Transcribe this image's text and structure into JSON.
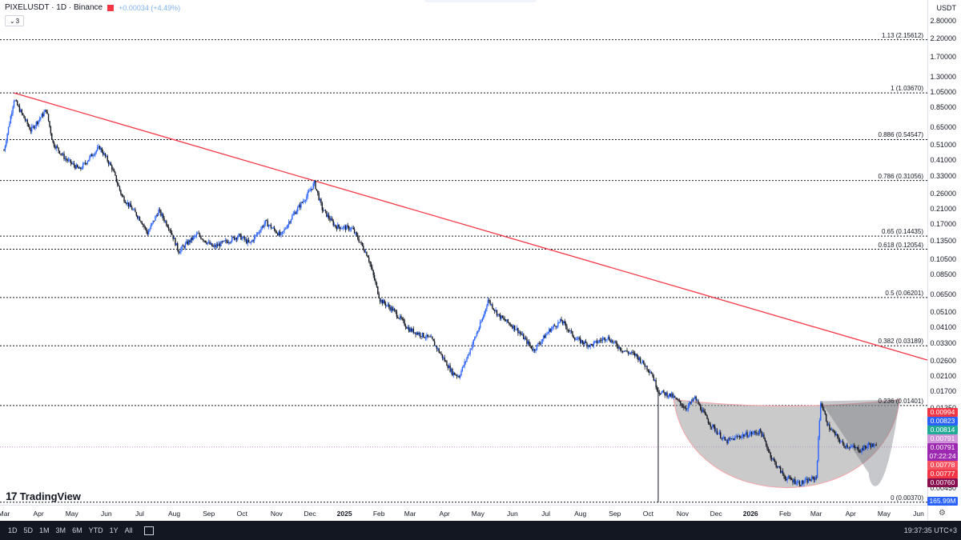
{
  "header": {
    "symbol": "PIXELUSDT · 1D · Binance",
    "change": "+0.00034 (+4.49%)",
    "indicator_count": "3"
  },
  "price_axis": {
    "currency": "USDT",
    "labels": [
      "2.80000",
      "2.20000",
      "1.70000",
      "1.30000",
      "1.05000",
      "0.85000",
      "0.65000",
      "0.51000",
      "0.41000",
      "0.33000",
      "0.26000",
      "0.21000",
      "0.17000",
      "0.13500",
      "0.10500",
      "0.08500",
      "0.06500",
      "0.05100",
      "0.04100",
      "0.03300",
      "0.02600",
      "0.02100",
      "0.01700",
      "0.01350",
      "0.00450"
    ],
    "badges": [
      {
        "text": "0.00994",
        "color": "#f23645"
      },
      {
        "text": "0.00823",
        "color": "#2962ff"
      },
      {
        "text": "0.00814",
        "color": "#22ab94"
      },
      {
        "text": "0.00791",
        "color": "#ce93d8"
      },
      {
        "text": "0.00791",
        "color": "#9c27b0"
      },
      {
        "text": "0.00778",
        "color": "#f7525f"
      },
      {
        "text": "0.00777",
        "color": "#f23645"
      },
      {
        "text": "0.00760",
        "color": "#880e4f"
      }
    ],
    "countdown": "07:22:24",
    "volume_badge": "165.99M"
  },
  "time_axis": {
    "labels": [
      "Mar",
      "Apr",
      "May",
      "Jun",
      "Jul",
      "Aug",
      "Sep",
      "Oct",
      "Nov",
      "Dec",
      "2025",
      "Feb",
      "Mar",
      "Apr",
      "May",
      "Jun",
      "Jul",
      "Aug",
      "Sep",
      "Oct",
      "Nov",
      "Dec",
      "2026",
      "Feb",
      "Mar",
      "Apr",
      "May",
      "Jun"
    ]
  },
  "fib_levels": [
    {
      "label": "1.13 (2.15612)",
      "value": 2.15612
    },
    {
      "label": "1 (1.03670)",
      "value": 1.0367
    },
    {
      "label": "0.886 (0.54547)",
      "value": 0.54547
    },
    {
      "label": "0.786 (0.31056)",
      "value": 0.31056
    },
    {
      "label": "0.65 (0.14435)",
      "value": 0.14435
    },
    {
      "label": "0.618 (0.12054)",
      "value": 0.12054
    },
    {
      "label": "0.5 (0.06201)",
      "value": 0.06201
    },
    {
      "label": "0.382 (0.03189)",
      "value": 0.03189
    },
    {
      "label": "0.236 (0.01401)",
      "value": 0.01401
    },
    {
      "label": "0 (0.00370)",
      "value": 0.0037
    }
  ],
  "range_buttons": [
    "1D",
    "5D",
    "1M",
    "3M",
    "6M",
    "YTD",
    "1Y",
    "All"
  ],
  "clock": "19:37:35 UTC+3",
  "logo": "TradingView",
  "colors": {
    "up": "#2962ff",
    "down": "#131722",
    "trendline": "#f23645",
    "cup_fill": "#9e9e9e",
    "cup_edge": "#f7a6ab",
    "current_price_line": "#ce93d8"
  },
  "chart_data": {
    "type": "candlestick",
    "title": "PIXELUSDT · 1D · Binance",
    "y_scale": "log",
    "ylim": [
      0.0037,
      2.8
    ],
    "x_range": [
      "2024-03-01",
      "2026-06-15"
    ],
    "price_path": [
      [
        "2024-03-01",
        0.47
      ],
      [
        "2024-03-10",
        0.95
      ],
      [
        "2024-03-25",
        0.62
      ],
      [
        "2024-04-08",
        0.82
      ],
      [
        "2024-04-14",
        0.52
      ],
      [
        "2024-04-25",
        0.42
      ],
      [
        "2024-05-08",
        0.36
      ],
      [
        "2024-05-20",
        0.45
      ],
      [
        "2024-05-26",
        0.49
      ],
      [
        "2024-06-06",
        0.37
      ],
      [
        "2024-06-15",
        0.25
      ],
      [
        "2024-07-02",
        0.18
      ],
      [
        "2024-07-08",
        0.15
      ],
      [
        "2024-07-18",
        0.205
      ],
      [
        "2024-07-28",
        0.16
      ],
      [
        "2024-08-05",
        0.117
      ],
      [
        "2024-08-12",
        0.13
      ],
      [
        "2024-08-22",
        0.148
      ],
      [
        "2024-09-05",
        0.124
      ],
      [
        "2024-09-18",
        0.135
      ],
      [
        "2024-09-28",
        0.145
      ],
      [
        "2024-10-08",
        0.13
      ],
      [
        "2024-10-22",
        0.175
      ],
      [
        "2024-11-05",
        0.145
      ],
      [
        "2024-11-15",
        0.19
      ],
      [
        "2024-11-28",
        0.25
      ],
      [
        "2024-12-05",
        0.3
      ],
      [
        "2024-12-12",
        0.21
      ],
      [
        "2024-12-24",
        0.165
      ],
      [
        "2025-01-08",
        0.16
      ],
      [
        "2025-01-22",
        0.11
      ],
      [
        "2025-02-02",
        0.06
      ],
      [
        "2025-02-14",
        0.052
      ],
      [
        "2025-02-28",
        0.04
      ],
      [
        "2025-03-20",
        0.035
      ],
      [
        "2025-04-08",
        0.022
      ],
      [
        "2025-04-14",
        0.021
      ],
      [
        "2025-04-20",
        0.026
      ],
      [
        "2025-05-05",
        0.046
      ],
      [
        "2025-05-10",
        0.06
      ],
      [
        "2025-05-20",
        0.048
      ],
      [
        "2025-06-05",
        0.04
      ],
      [
        "2025-06-20",
        0.03
      ],
      [
        "2025-07-05",
        0.04
      ],
      [
        "2025-07-15",
        0.045
      ],
      [
        "2025-07-28",
        0.035
      ],
      [
        "2025-08-10",
        0.032
      ],
      [
        "2025-08-25",
        0.036
      ],
      [
        "2025-09-08",
        0.03
      ],
      [
        "2025-09-20",
        0.028
      ],
      [
        "2025-10-04",
        0.022
      ],
      [
        "2025-10-10",
        0.017
      ],
      [
        "2025-10-22",
        0.016
      ],
      [
        "2025-11-04",
        0.0135
      ],
      [
        "2025-11-12",
        0.0155
      ],
      [
        "2025-11-25",
        0.011
      ],
      [
        "2025-12-10",
        0.0085
      ],
      [
        "2025-12-22",
        0.0092
      ],
      [
        "2026-01-10",
        0.0098
      ],
      [
        "2026-01-20",
        0.0068
      ],
      [
        "2026-02-01",
        0.0052
      ],
      [
        "2026-02-15",
        0.0048
      ],
      [
        "2026-03-01",
        0.0052
      ],
      [
        "2026-03-05",
        0.0148
      ],
      [
        "2026-03-12",
        0.0105
      ],
      [
        "2026-03-25",
        0.0082
      ],
      [
        "2026-04-10",
        0.0076
      ],
      [
        "2026-04-18",
        0.0082
      ],
      [
        "2026-04-24",
        0.0079
      ]
    ],
    "trendline": [
      [
        "2024-03-10",
        1.0367
      ],
      [
        "2026-06-15",
        0.0255
      ]
    ],
    "cup_pattern": {
      "start": [
        "2025-10-24",
        0.0152
      ],
      "bottom": [
        "2026-02-10",
        0.0042
      ],
      "end": [
        "2026-05-15",
        0.0152
      ]
    },
    "last_price": 0.00791
  }
}
